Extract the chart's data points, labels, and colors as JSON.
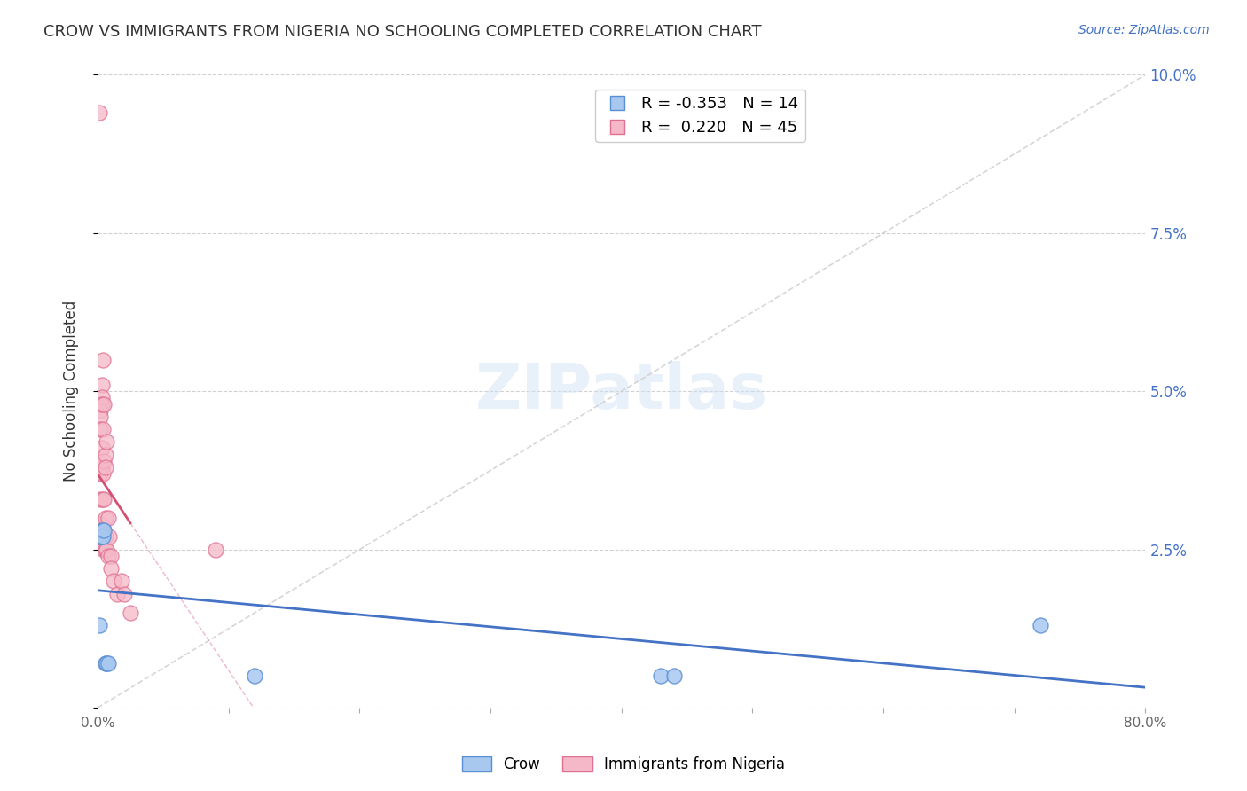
{
  "title": "CROW VS IMMIGRANTS FROM NIGERIA NO SCHOOLING COMPLETED CORRELATION CHART",
  "source": "Source: ZipAtlas.com",
  "ylabel": "No Schooling Completed",
  "xlabel": "",
  "xlim": [
    0.0,
    0.8
  ],
  "ylim": [
    0.0,
    0.1
  ],
  "xticks": [
    0.0,
    0.1,
    0.2,
    0.3,
    0.4,
    0.5,
    0.6,
    0.7,
    0.8
  ],
  "yticks": [
    0.0,
    0.025,
    0.05,
    0.075,
    0.1
  ],
  "ytick_right_labels": [
    "",
    "2.5%",
    "5.0%",
    "7.5%",
    "10.0%"
  ],
  "xtick_labels": [
    "0.0%",
    "",
    "",
    "",
    "",
    "",
    "",
    "",
    "80.0%"
  ],
  "crow_color": "#a8c8f0",
  "nigeria_color": "#f5b8c8",
  "crow_edge_color": "#5b8fd4",
  "nigeria_edge_color": "#e07090",
  "crow_line_color": "#4472c4",
  "nigeria_line_color": "#d45070",
  "diagonal_color": "#cccccc",
  "legend_crow_R": "-0.353",
  "legend_crow_N": "14",
  "legend_nigeria_R": "0.220",
  "legend_nigeria_N": "45",
  "crow_x": [
    0.001,
    0.002,
    0.002,
    0.003,
    0.003,
    0.004,
    0.005,
    0.006,
    0.007,
    0.008,
    0.12,
    0.43,
    0.44,
    0.72
  ],
  "crow_y": [
    0.013,
    0.027,
    0.027,
    0.027,
    0.028,
    0.027,
    0.028,
    0.007,
    0.007,
    0.007,
    0.005,
    0.005,
    0.005,
    0.013
  ],
  "nigeria_x": [
    0.001,
    0.001,
    0.001,
    0.001,
    0.002,
    0.002,
    0.002,
    0.002,
    0.002,
    0.002,
    0.002,
    0.003,
    0.003,
    0.003,
    0.003,
    0.003,
    0.003,
    0.004,
    0.004,
    0.004,
    0.004,
    0.004,
    0.005,
    0.005,
    0.005,
    0.005,
    0.005,
    0.006,
    0.006,
    0.006,
    0.006,
    0.006,
    0.007,
    0.007,
    0.008,
    0.008,
    0.009,
    0.01,
    0.01,
    0.012,
    0.015,
    0.018,
    0.02,
    0.025,
    0.09
  ],
  "nigeria_y": [
    0.094,
    0.028,
    0.027,
    0.026,
    0.048,
    0.047,
    0.046,
    0.044,
    0.037,
    0.033,
    0.029,
    0.051,
    0.049,
    0.048,
    0.041,
    0.038,
    0.028,
    0.055,
    0.044,
    0.037,
    0.033,
    0.028,
    0.048,
    0.039,
    0.033,
    0.028,
    0.025,
    0.04,
    0.038,
    0.03,
    0.027,
    0.025,
    0.042,
    0.025,
    0.03,
    0.024,
    0.027,
    0.024,
    0.022,
    0.02,
    0.018,
    0.02,
    0.018,
    0.015,
    0.025
  ],
  "background_color": "#ffffff",
  "grid_color": "#cccccc"
}
